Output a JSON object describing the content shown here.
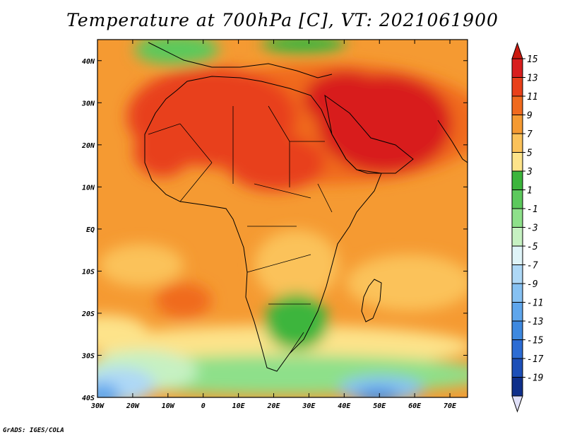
{
  "title": "Temperature at 700hPa [C], VT: 2021061900",
  "credit": "GrADS: IGES/COLA",
  "map": {
    "x_ticks": [
      "30W",
      "20W",
      "10W",
      "0",
      "10E",
      "20E",
      "30E",
      "40E",
      "50E",
      "60E",
      "70E"
    ],
    "y_ticks": [
      "40N",
      "30N",
      "20N",
      "10N",
      "EQ",
      "10S",
      "20S",
      "30S",
      "40S"
    ],
    "lon_range": [
      -30,
      75
    ],
    "lat_range": [
      -40,
      45
    ]
  },
  "colorbar": {
    "labels": [
      "15",
      "13",
      "11",
      "9",
      "7",
      "5",
      "3",
      "1",
      "-1",
      "-3",
      "-5",
      "-7",
      "-9",
      "-11",
      "-13",
      "-15",
      "-17",
      "-19"
    ],
    "colors": [
      "#d81e1e",
      "#e8401a",
      "#f06a1e",
      "#f59a32",
      "#fbc25a",
      "#fde38a",
      "#3cb53c",
      "#5cc95c",
      "#8ee08a",
      "#c6f1c2",
      "#dff4f8",
      "#aed8f6",
      "#86c1f2",
      "#5fa6ec",
      "#3e89e0",
      "#2c6cd4",
      "#1d4fb8",
      "#0f2f8a"
    ],
    "top_color": "#cc1a10",
    "bottom_color": "#e0e0f8"
  }
}
